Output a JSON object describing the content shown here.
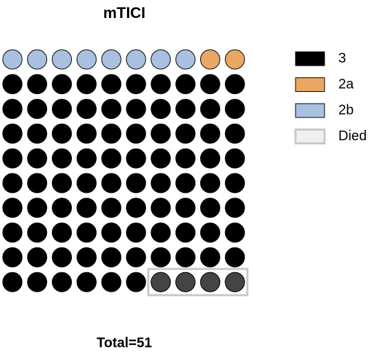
{
  "chart_data": {
    "type": "waffle",
    "title": "mTICI",
    "series": [
      {
        "name": "3",
        "color": "#000000",
        "value": 90
      },
      {
        "name": "2a",
        "color": "#eaa764",
        "value": 2
      },
      {
        "name": "2b",
        "color": "#a9c0e0",
        "value": 8
      }
    ],
    "overlay": {
      "name": "Died",
      "value": 4,
      "color": "#444444",
      "legend_color": "#efefef"
    },
    "columns": 10,
    "footer": "Total=51"
  }
}
